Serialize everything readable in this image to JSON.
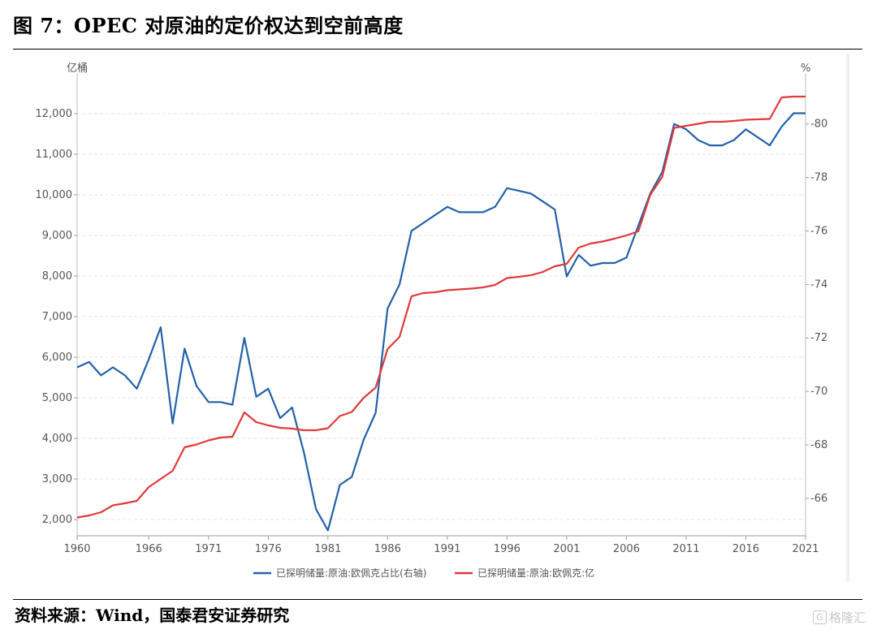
{
  "title": "图 7：OPEC 对原油的定价权达到空前高度",
  "source": "资料来源：Wind，国泰君安证券研究",
  "watermark": "格隆汇",
  "chart_data": {
    "type": "line",
    "left_unit": "亿桶",
    "right_unit": "%",
    "x_ticks": [
      1960,
      1966,
      1971,
      1976,
      1981,
      1986,
      1991,
      1996,
      2001,
      2006,
      2011,
      2016,
      2021
    ],
    "xlim": [
      1960,
      2021
    ],
    "ylim_left": [
      1600,
      12800
    ],
    "yticks_left": [
      2000,
      3000,
      4000,
      5000,
      6000,
      7000,
      8000,
      9000,
      10000,
      11000,
      12000
    ],
    "ytick_labels_left": [
      "2,000",
      "3,000",
      "4,000",
      "5,000",
      "6,000",
      "7,000",
      "8,000",
      "9,000",
      "10,000",
      "11,000",
      "12,000"
    ],
    "ylim_right": [
      64.6,
      81.6
    ],
    "yticks_right": [
      66,
      68,
      70,
      72,
      74,
      76,
      78,
      80
    ],
    "grid": true,
    "legend_position": "bottom",
    "series": [
      {
        "name": "已探明储量:原油:欧佩克占比(右轴)",
        "axis": "right",
        "color": "#2461a8",
        "x": [
          1960,
          1961,
          1962,
          1963,
          1964,
          1965,
          1966,
          1967,
          1968,
          1969,
          1970,
          1971,
          1972,
          1973,
          1974,
          1975,
          1976,
          1977,
          1978,
          1979,
          1980,
          1981,
          1982,
          1983,
          1984,
          1985,
          1986,
          1987,
          1988,
          1989,
          1990,
          1991,
          1992,
          1993,
          1994,
          1995,
          1996,
          1997,
          1998,
          1999,
          2000,
          2001,
          2002,
          2003,
          2004,
          2005,
          2006,
          2007,
          2008,
          2009,
          2010,
          2011,
          2012,
          2013,
          2014,
          2015,
          2016,
          2017,
          2018,
          2019,
          2020,
          2021
        ],
        "y": [
          70.9,
          71.1,
          70.6,
          70.9,
          70.6,
          70.1,
          71.2,
          72.4,
          68.8,
          71.6,
          70.2,
          69.6,
          69.6,
          69.5,
          72.0,
          69.8,
          70.1,
          69.0,
          69.4,
          67.7,
          65.6,
          64.8,
          66.5,
          66.8,
          68.2,
          69.2,
          73.1,
          74.0,
          76.0,
          76.3,
          76.6,
          76.9,
          76.7,
          76.7,
          76.7,
          76.9,
          77.6,
          77.5,
          77.4,
          77.1,
          76.8,
          74.3,
          75.1,
          74.7,
          74.8,
          74.8,
          75.0,
          76.2,
          77.4,
          78.2,
          80.0,
          79.8,
          79.4,
          79.2,
          79.2,
          79.4,
          79.8,
          79.5,
          79.2,
          79.9,
          80.4,
          80.4
        ]
      },
      {
        "name": "已探明储量:原油:欧佩克:亿",
        "axis": "left",
        "color": "#e03a3a",
        "x": [
          1960,
          1961,
          1962,
          1963,
          1964,
          1965,
          1966,
          1967,
          1968,
          1969,
          1970,
          1971,
          1972,
          1973,
          1974,
          1975,
          1976,
          1977,
          1978,
          1979,
          1980,
          1981,
          1982,
          1983,
          1984,
          1985,
          1986,
          1987,
          1988,
          1989,
          1990,
          1991,
          1992,
          1993,
          1994,
          1995,
          1996,
          1997,
          1998,
          1999,
          2000,
          2001,
          2002,
          2003,
          2004,
          2005,
          2006,
          2007,
          2008,
          2009,
          2010,
          2011,
          2012,
          2013,
          2014,
          2015,
          2016,
          2017,
          2018,
          2019,
          2020,
          2021
        ],
        "y": [
          2050,
          2100,
          2180,
          2350,
          2400,
          2460,
          2800,
          3000,
          3200,
          3780,
          3850,
          3950,
          4020,
          4040,
          4640,
          4400,
          4320,
          4260,
          4240,
          4200,
          4200,
          4250,
          4550,
          4650,
          5000,
          5250,
          6200,
          6500,
          7500,
          7580,
          7600,
          7650,
          7670,
          7690,
          7720,
          7780,
          7950,
          7980,
          8020,
          8100,
          8240,
          8300,
          8700,
          8800,
          8850,
          8920,
          9000,
          9100,
          10000,
          10440,
          11650,
          11700,
          11750,
          11800,
          11800,
          11820,
          11850,
          11860,
          11870,
          12400,
          12420,
          12420
        ]
      }
    ]
  }
}
